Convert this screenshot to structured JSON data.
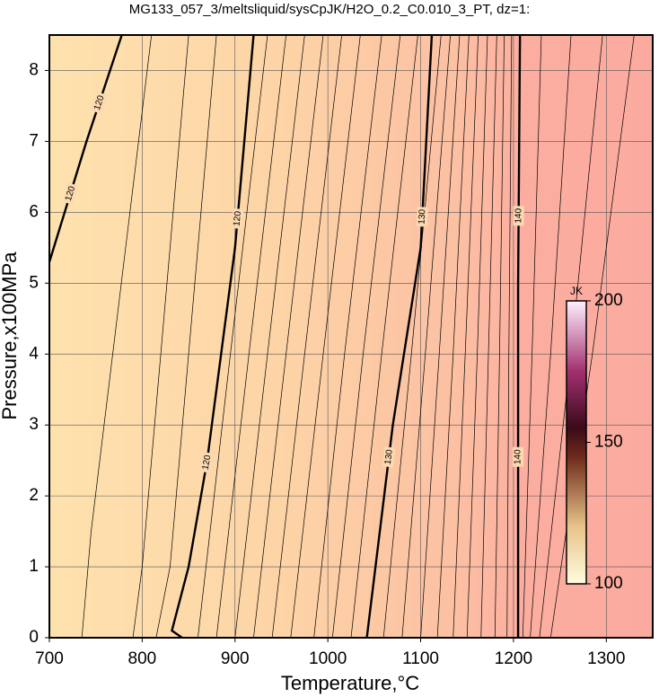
{
  "chart_data": {
    "type": "contour",
    "title": "MG133_057_3/meltsliquid/sysCpJK/H2O_0.2_C0.010_3_PT, dz=1:",
    "xlabel": "Temperature,°C",
    "ylabel": "Pressure,x100MPa",
    "xlim": [
      700,
      1350
    ],
    "ylim": [
      0,
      8.5
    ],
    "xticks": [
      700,
      800,
      900,
      1000,
      1100,
      1200,
      1300
    ],
    "yticks": [
      0,
      1,
      2,
      3,
      4,
      5,
      6,
      7,
      8
    ],
    "grid": true,
    "contours": [
      {
        "level": 120,
        "x": [
          843,
          832,
          850,
          870,
          900,
          920
        ],
        "y": [
          0,
          0.1,
          1,
          2.5,
          5.5,
          8.5
        ]
      },
      {
        "level": 120,
        "x": [
          700,
          740,
          778
        ],
        "y": [
          5.3,
          7,
          8.5
        ]
      },
      {
        "level": 130,
        "x": [
          1042,
          1070,
          1100,
          1112
        ],
        "y": [
          0,
          3,
          5.5,
          8.5
        ]
      },
      {
        "level": 140,
        "x": [
          1205,
          1205,
          1207
        ],
        "y": [
          0,
          5,
          8.5
        ]
      },
      {
        "level": 119,
        "x": [
          815,
          830,
          880
        ],
        "y": [
          0,
          1,
          8.5
        ]
      },
      {
        "level": 118,
        "x": [
          790,
          800,
          850
        ],
        "y": [
          0,
          1,
          8.5
        ]
      },
      {
        "level": 117,
        "x": [
          735,
          745,
          810
        ],
        "y": [
          0,
          1.5,
          8.5
        ]
      },
      {
        "level": 121,
        "x": [
          860,
          895,
          935
        ],
        "y": [
          0,
          4,
          8.5
        ]
      },
      {
        "level": 122,
        "x": [
          880,
          915,
          955
        ],
        "y": [
          0,
          4,
          8.5
        ]
      },
      {
        "level": 123,
        "x": [
          900,
          935,
          975
        ],
        "y": [
          0,
          4,
          8.5
        ]
      },
      {
        "level": 124,
        "x": [
          920,
          955,
          995
        ],
        "y": [
          0,
          4,
          8.5
        ]
      },
      {
        "level": 125,
        "x": [
          940,
          975,
          1015
        ],
        "y": [
          0,
          4,
          8.5
        ]
      },
      {
        "level": 126,
        "x": [
          960,
          995,
          1035
        ],
        "y": [
          0,
          4,
          8.5
        ]
      },
      {
        "level": 127,
        "x": [
          985,
          1018,
          1058
        ],
        "y": [
          0,
          4,
          8.5
        ]
      },
      {
        "level": 128,
        "x": [
          1005,
          1038,
          1078
        ],
        "y": [
          0,
          4,
          8.5
        ]
      },
      {
        "level": 129,
        "x": [
          1025,
          1058,
          1097
        ],
        "y": [
          0,
          4,
          8.5
        ]
      },
      {
        "level": 131,
        "x": [
          1060,
          1090,
          1122
        ],
        "y": [
          0,
          4,
          8.5
        ]
      },
      {
        "level": 132,
        "x": [
          1080,
          1105,
          1132
        ],
        "y": [
          0,
          4,
          8.5
        ]
      },
      {
        "level": 133,
        "x": [
          1100,
          1120,
          1142
        ],
        "y": [
          0,
          4,
          8.5
        ]
      },
      {
        "level": 134,
        "x": [
          1118,
          1135,
          1152
        ],
        "y": [
          0,
          4,
          8.5
        ]
      },
      {
        "level": 135,
        "x": [
          1135,
          1148,
          1162
        ],
        "y": [
          0,
          4,
          8.5
        ]
      },
      {
        "level": 136,
        "x": [
          1150,
          1161,
          1172
        ],
        "y": [
          0,
          4,
          8.5
        ]
      },
      {
        "level": 137,
        "x": [
          1165,
          1173,
          1182
        ],
        "y": [
          0,
          4,
          8.5
        ]
      },
      {
        "level": 138,
        "x": [
          1180,
          1185,
          1190
        ],
        "y": [
          0,
          4,
          8.5
        ]
      },
      {
        "level": 139,
        "x": [
          1193,
          1195,
          1198
        ],
        "y": [
          0,
          4,
          8.5
        ]
      },
      {
        "level": 141,
        "x": [
          1210,
          1220,
          1230
        ],
        "y": [
          0,
          4,
          8.5
        ]
      },
      {
        "level": 142,
        "x": [
          1218,
          1240,
          1262
        ],
        "y": [
          0,
          4,
          8.5
        ]
      },
      {
        "level": 143,
        "x": [
          1228,
          1262,
          1296
        ],
        "y": [
          0,
          4,
          8.5
        ]
      },
      {
        "level": 144,
        "x": [
          1240,
          1285,
          1330
        ],
        "y": [
          0,
          4,
          8.5
        ]
      }
    ],
    "colorbar": {
      "label": "JK",
      "lim": [
        100,
        200
      ],
      "ticks": [
        100,
        150,
        200
      ]
    }
  }
}
